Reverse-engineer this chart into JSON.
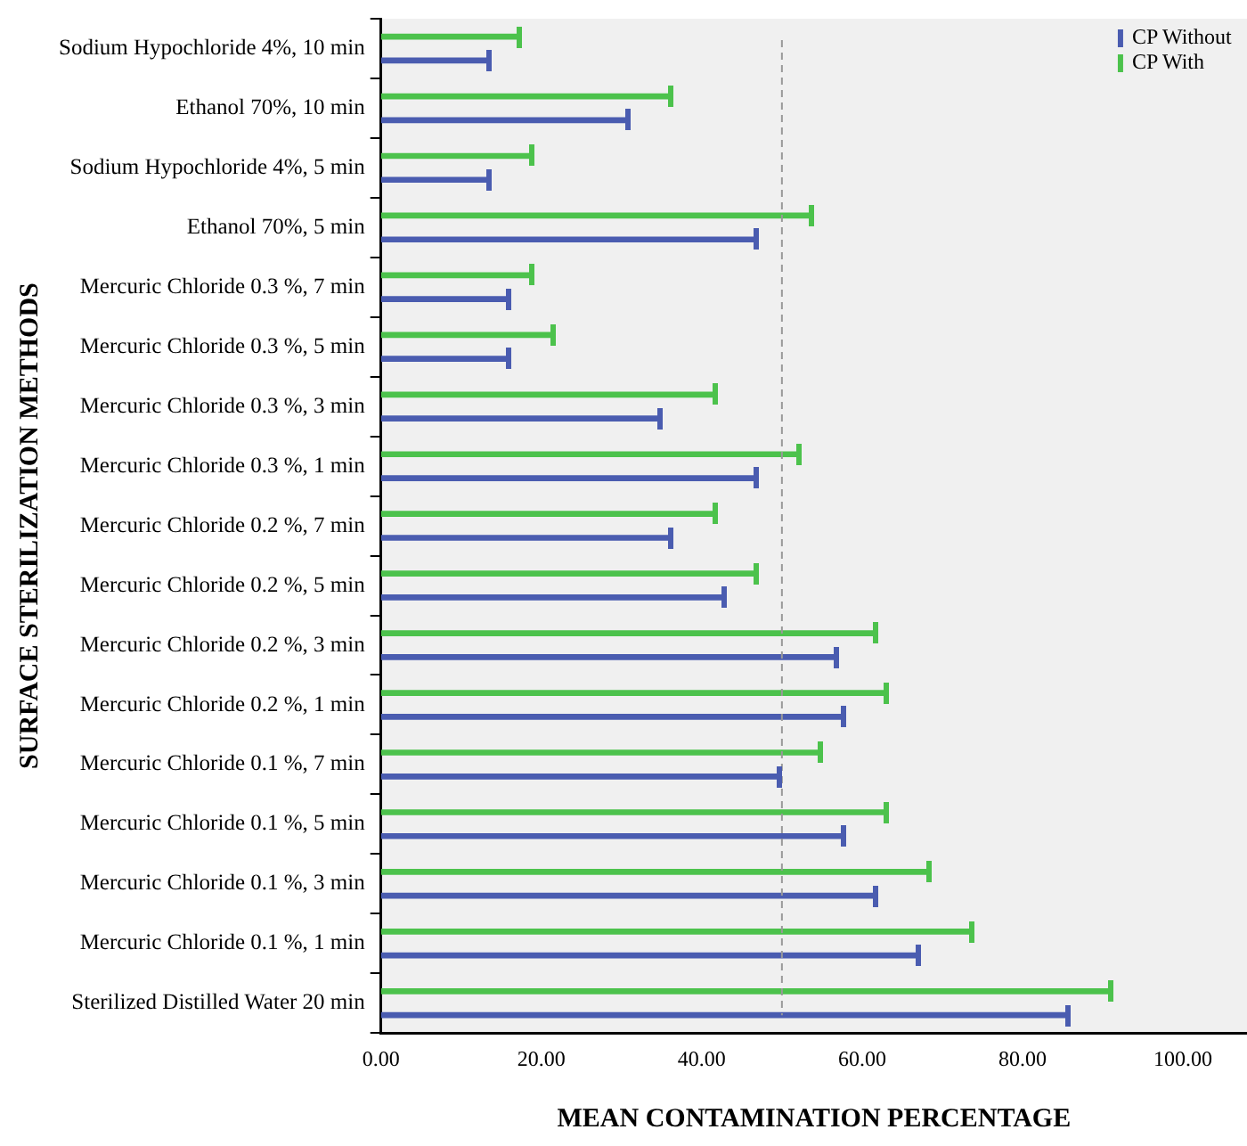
{
  "chart_data": {
    "type": "bar",
    "orientation": "horizontal",
    "xlabel": "MEAN CONTAMINATION PERCENTAGE",
    "ylabel": "SURFACE STERILIZATION METHODS",
    "categories": [
      "Sodium Hypochloride 4%, 10 min",
      "Ethanol 70%, 10 min",
      "Sodium Hypochloride 4%, 5 min",
      "Ethanol 70%, 5 min",
      "Mercuric Chloride 0.3 %, 7 min",
      "Mercuric Chloride 0.3 %, 5 min",
      "Mercuric Chloride 0.3 %, 3 min",
      "Mercuric Chloride 0.3 %, 1 min",
      "Mercuric Chloride 0.2 %, 7 min",
      "Mercuric Chloride 0.2 %, 5 min",
      "Mercuric Chloride 0.2 %, 3 min",
      "Mercuric Chloride 0.2 %, 1 min",
      "Mercuric Chloride 0.1 %, 7 min",
      "Mercuric Chloride 0.1 %, 5 min",
      "Mercuric Chloride 0.1 %, 3 min",
      "Mercuric Chloride 0.1 %, 1 min",
      "Sterilized Distilled Water 20 min"
    ],
    "series": [
      {
        "name": "CP Without",
        "color": "#4a5cb0",
        "values": [
          13.4,
          30.9,
          13.4,
          46.9,
          15.9,
          15.9,
          34.8,
          46.9,
          36.2,
          42.8,
          56.9,
          57.6,
          49.6,
          57.6,
          61.6,
          67.0,
          85.7
        ]
      },
      {
        "name": "CP With",
        "color": "#4cc24c",
        "values": [
          17.3,
          36.2,
          18.7,
          53.6,
          18.7,
          21.4,
          41.6,
          52.2,
          41.6,
          46.9,
          61.6,
          63.1,
          54.9,
          63.1,
          68.4,
          73.7,
          91.1
        ]
      }
    ],
    "xlim": [
      0,
      108
    ],
    "xticks": [
      {
        "value": 0,
        "label": "0.00"
      },
      {
        "value": 20,
        "label": "20.00"
      },
      {
        "value": 40,
        "label": "40.00"
      },
      {
        "value": 60,
        "label": "60.00"
      },
      {
        "value": 80,
        "label": "80.00"
      },
      {
        "value": 100,
        "label": "100.00"
      }
    ],
    "ref_lines": [
      {
        "axis": "x",
        "value": 50,
        "color": "#999999",
        "line_style": "dashed"
      }
    ],
    "grid": false,
    "legend": "top right"
  }
}
